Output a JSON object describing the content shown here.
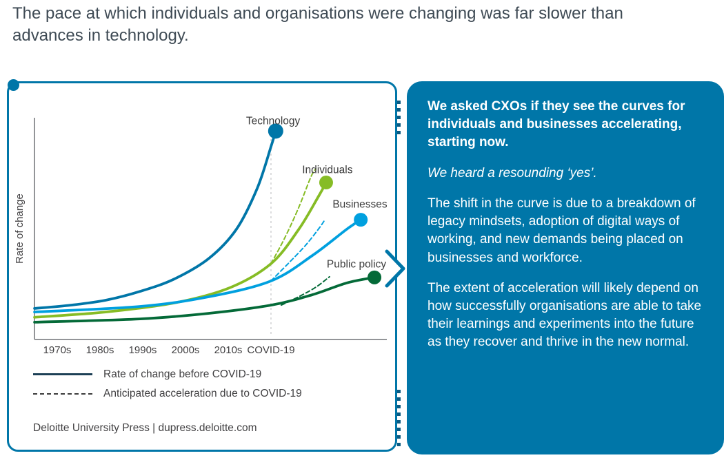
{
  "heading": "The pace at which individuals and organisations were changing was far slower than advances in technology.",
  "colors": {
    "accent": "#0076A8",
    "panel_bg": "#0076A8",
    "heading_text": "#3E4A54",
    "body_text": "#414042",
    "axis": "#939598",
    "legend_line": "#1C3F55",
    "dots": "#0A5A82",
    "panel_text": "#FFFFFF"
  },
  "chart": {
    "footer": "Deloitte University Press | dupress.deloitte.com"
  },
  "chart_data": {
    "type": "line",
    "title": "",
    "ylabel": "Rate of change",
    "xlabel": "",
    "ylim": [
      0,
      100
    ],
    "x_scale": "decade index: 0=1970s, 1=1980s, 2=1990s, 3=2000s, 4=2010s, 5=COVID-19; values beyond 5 extend past the COVID-19 marker",
    "grid": false,
    "covid_marker_pos": 5,
    "x_ticks": [
      {
        "pos": 0,
        "label": "1970s"
      },
      {
        "pos": 1,
        "label": "1980s"
      },
      {
        "pos": 2,
        "label": "1990s"
      },
      {
        "pos": 3,
        "label": "2000s"
      },
      {
        "pos": 4,
        "label": "2010s"
      },
      {
        "pos": 5,
        "label": "COVID-19"
      }
    ],
    "series": [
      {
        "name": "Technology",
        "color": "#0076A8",
        "style": "solid",
        "end_dot": true,
        "dot_r": 11,
        "label": "Technology",
        "label_pos": [
          5.05,
          97
        ],
        "points": [
          [
            -0.53,
            14
          ],
          [
            0.32,
            15.5
          ],
          [
            1.13,
            17.7
          ],
          [
            1.94,
            21.7
          ],
          [
            2.74,
            27.3
          ],
          [
            3.55,
            36.6
          ],
          [
            4.19,
            49.7
          ],
          [
            4.68,
            68.3
          ],
          [
            5.0,
            87
          ],
          [
            5.11,
            94
          ]
        ]
      },
      {
        "name": "Individuals",
        "color": "#86BC25",
        "style": "solid",
        "end_dot": true,
        "dot_r": 10,
        "label": "Individuals",
        "label_pos": [
          6.32,
          75
        ],
        "points": [
          [
            -0.53,
            10
          ],
          [
            1.13,
            12.4
          ],
          [
            2.74,
            16.5
          ],
          [
            4.03,
            23.3
          ],
          [
            5.0,
            34.2
          ],
          [
            5.65,
            49.7
          ],
          [
            6.13,
            65.2
          ],
          [
            6.29,
            70.8
          ]
        ]
      },
      {
        "name": "Businesses",
        "color": "#00A0DF",
        "style": "solid",
        "end_dot": true,
        "dot_r": 10,
        "label": "Businesses",
        "label_pos": [
          7.08,
          59.5
        ],
        "points": [
          [
            -0.53,
            12.4
          ],
          [
            1.94,
            14.9
          ],
          [
            3.55,
            19.3
          ],
          [
            5.0,
            26.4
          ],
          [
            5.97,
            37.9
          ],
          [
            6.77,
            49.7
          ],
          [
            7.1,
            54
          ]
        ]
      },
      {
        "name": "Public policy",
        "color": "#046A38",
        "style": "solid",
        "end_dot": true,
        "dot_r": 10,
        "label": "Public policy",
        "label_pos": [
          7.0,
          32.5
        ],
        "points": [
          [
            -0.53,
            7.8
          ],
          [
            1.94,
            9.3
          ],
          [
            3.55,
            11.8
          ],
          [
            5.0,
            15.5
          ],
          [
            5.97,
            20.2
          ],
          [
            6.77,
            25.5
          ],
          [
            7.42,
            28
          ]
        ]
      },
      {
        "name": "Individuals - anticipated acceleration",
        "color": "#86BC25",
        "style": "dashed",
        "end_dot": false,
        "points": [
          [
            5.0,
            34.2
          ],
          [
            5.32,
            45.7
          ],
          [
            5.65,
            59.6
          ],
          [
            5.94,
            73.6
          ],
          [
            6.05,
            77
          ]
        ]
      },
      {
        "name": "Businesses - anticipated acceleration",
        "color": "#00A0DF",
        "style": "dashed",
        "end_dot": false,
        "points": [
          [
            5.0,
            26.4
          ],
          [
            5.4,
            34.2
          ],
          [
            5.81,
            42.5
          ],
          [
            6.13,
            50.3
          ],
          [
            6.24,
            53.4
          ]
        ]
      },
      {
        "name": "Public policy - anticipated acceleration",
        "color": "#046A38",
        "style": "dashed",
        "end_dot": false,
        "points": [
          [
            5.24,
            15.5
          ],
          [
            5.65,
            19.3
          ],
          [
            6.05,
            23.6
          ],
          [
            6.37,
            28.3
          ]
        ]
      }
    ],
    "legend": [
      {
        "style": "solid",
        "label": "Rate of change before COVID-19"
      },
      {
        "style": "dashed",
        "label": "Anticipated acceleration due to COVID-19"
      }
    ]
  },
  "panel": {
    "paragraphs": [
      {
        "style": "bold",
        "text": "We asked CXOs if they see the curves for individuals and businesses accelerating, starting now."
      },
      {
        "style": "italic",
        "text": "We heard a resounding  ‘yes’."
      },
      {
        "style": "normal",
        "text": "The shift in the curve is due to a breakdown of legacy mindsets, adoption of digital ways of working, and new demands being placed on businesses and workforce."
      },
      {
        "style": "normal",
        "text": "The extent of acceleration will likely depend on how successfully organisations are able to take their learnings and experiments into the future as they recover and thrive in the new normal."
      }
    ]
  }
}
